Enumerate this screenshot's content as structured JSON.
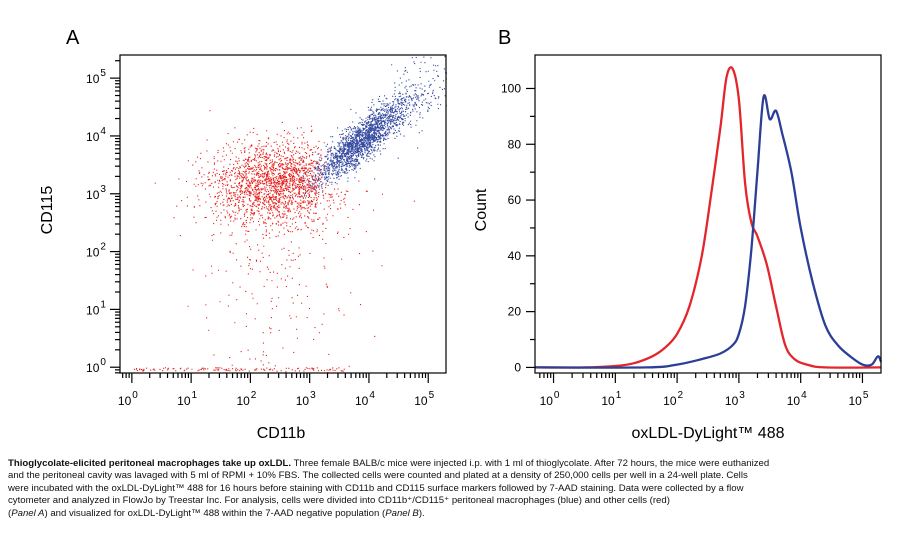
{
  "chart_data": [
    {
      "type": "scatter",
      "panel_label": "A",
      "xlabel": "CD11b",
      "ylabel": "CD115",
      "x_ticks": [
        {
          "base": "10",
          "exp": "0"
        },
        {
          "base": "10",
          "exp": "1"
        },
        {
          "base": "10",
          "exp": "2"
        },
        {
          "base": "10",
          "exp": "3"
        },
        {
          "base": "10",
          "exp": "4"
        },
        {
          "base": "10",
          "exp": "5"
        }
      ],
      "y_ticks": [
        {
          "base": "10",
          "exp": "0"
        },
        {
          "base": "10",
          "exp": "1"
        },
        {
          "base": "10",
          "exp": "2"
        },
        {
          "base": "10",
          "exp": "3"
        },
        {
          "base": "10",
          "exp": "4"
        },
        {
          "base": "10",
          "exp": "5"
        }
      ],
      "scale": "log",
      "xlim_log10": [
        -0.2,
        5.3
      ],
      "ylim_log10": [
        -0.1,
        5.4
      ],
      "series": [
        {
          "color": "#e8201c",
          "center_log10": [
            2.4,
            3.2
          ],
          "spread_log10": [
            0.55,
            0.35
          ],
          "count": 6500
        },
        {
          "color": "#3449a0",
          "center_log10": [
            3.9,
            3.95
          ],
          "spread_log10": [
            0.35,
            0.3
          ],
          "count": 9000
        }
      ]
    },
    {
      "type": "line",
      "panel_label": "B",
      "xlabel": "oxLDL-DyLight™ 488",
      "ylabel": "Count",
      "x_ticks": [
        {
          "base": "10",
          "exp": "0"
        },
        {
          "base": "10",
          "exp": "1"
        },
        {
          "base": "10",
          "exp": "2"
        },
        {
          "base": "10",
          "exp": "3"
        },
        {
          "base": "10",
          "exp": "4"
        },
        {
          "base": "10",
          "exp": "5"
        }
      ],
      "y_ticks": [
        0,
        20,
        40,
        60,
        80,
        100
      ],
      "xlim_log10": [
        -0.3,
        5.3
      ],
      "ylim": [
        -2,
        112
      ],
      "series": [
        {
          "color": "#e3262b",
          "x_log10": [
            -0.3,
            0.5,
            1.0,
            1.3,
            1.6,
            1.8,
            2.0,
            2.2,
            2.4,
            2.55,
            2.7,
            2.8,
            2.9,
            3.0,
            3.1,
            3.2,
            3.3,
            3.45,
            3.6,
            3.75,
            3.9,
            4.1,
            4.4,
            5.3
          ],
          "y": [
            0,
            0,
            0.5,
            1.5,
            4,
            7,
            12,
            22,
            40,
            62,
            86,
            104,
            107,
            96,
            66,
            52,
            47,
            37,
            22,
            8,
            3,
            1,
            0,
            0
          ]
        },
        {
          "color": "#2c3f96",
          "x_log10": [
            -0.3,
            1.5,
            2.0,
            2.4,
            2.7,
            2.9,
            3.0,
            3.1,
            3.2,
            3.3,
            3.4,
            3.5,
            3.6,
            3.7,
            3.85,
            4.0,
            4.2,
            4.4,
            4.6,
            4.8,
            5.0,
            5.15,
            5.25,
            5.3
          ],
          "y": [
            0,
            0,
            1,
            3,
            5,
            8,
            12,
            22,
            42,
            70,
            97,
            89,
            92,
            84,
            70,
            50,
            30,
            15,
            8,
            4,
            1,
            1,
            4,
            2
          ]
        }
      ]
    }
  ],
  "caption": {
    "title": "Thioglycolate-elicited peritoneal macrophages take up oxLDL.",
    "line1": " Three female BALB/c mice were injected i.p. with 1 ml of thioglycolate. After 72 hours, the mice were euthanized",
    "line2": "and the peritoneal cavity was lavaged with 5 ml of RPMI + 10% FBS. The collected cells were counted and plated at a density of 250,000 cells per well in a 24-well plate. Cells",
    "line3": "were incubated with the oxLDL-DyLight™ 488 for 16 hours before staining with CD11b and CD115 surface markers followed by 7-AAD staining. Data were collected by a flow",
    "line4": "cytometer and analyzed in FlowJo by Treestar Inc. For analysis, cells were divided into CD11b⁺/CD115⁺ peritoneal macrophages (blue) and other cells (red)",
    "line5_open": "(",
    "panel_a": "Panel A",
    "line5_mid": ") and visualized for oxLDL-DyLight™ 488 within the 7-AAD negative population (",
    "panel_b": "Panel B",
    "line5_end": ")."
  }
}
